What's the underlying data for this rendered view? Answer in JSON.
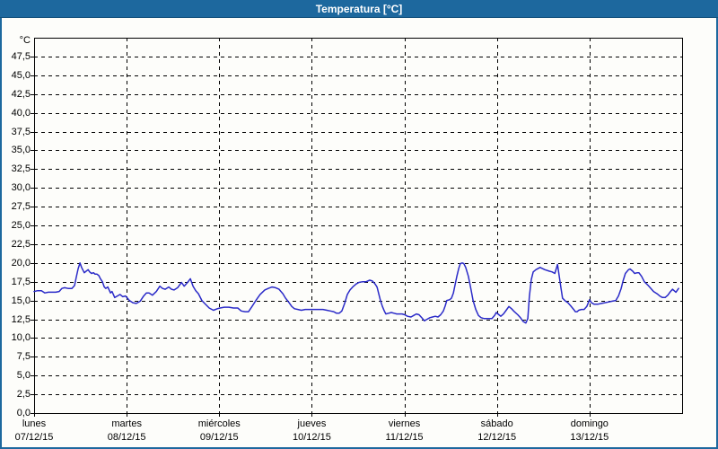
{
  "window": {
    "title": "Temperatura [°C]",
    "titlebar_color": "#1d689e",
    "content_background": "#fdfdfa"
  },
  "chart_data": {
    "type": "line",
    "title": "Temperatura [°C]",
    "unit_label": "°C",
    "grid": "dashed",
    "legend": "none",
    "ylim": [
      0,
      50
    ],
    "xlim_hours": [
      0,
      168
    ],
    "y_ticks": [
      "0,0",
      "2,5",
      "5,0",
      "7,5",
      "10,0",
      "12,5",
      "15,0",
      "17,5",
      "20,0",
      "22,5",
      "25,0",
      "27,5",
      "30,0",
      "32,5",
      "35,0",
      "37,5",
      "40,0",
      "42,5",
      "45,0",
      "47,5"
    ],
    "x_days": [
      {
        "name": "lunes",
        "date": "07/12/15"
      },
      {
        "name": "martes",
        "date": "08/12/15"
      },
      {
        "name": "miércoles",
        "date": "09/12/15"
      },
      {
        "name": "jueves",
        "date": "10/12/15"
      },
      {
        "name": "viernes",
        "date": "11/12/15"
      },
      {
        "name": "sábado",
        "date": "12/12/15"
      },
      {
        "name": "domingo",
        "date": "13/12/15"
      }
    ],
    "series": [
      {
        "name": "Temperatura",
        "color": "#2a2ac8",
        "points_format": "[hours_from_monday_00h, temp_celsius]",
        "points": [
          [
            0,
            16.2
          ],
          [
            0.9,
            16.3
          ],
          [
            1.9,
            16.3
          ],
          [
            2.8,
            16
          ],
          [
            3.7,
            16.1
          ],
          [
            4.7,
            16.1
          ],
          [
            5.6,
            16.1
          ],
          [
            6.5,
            16.2
          ],
          [
            7.2,
            16.6
          ],
          [
            7.9,
            16.7
          ],
          [
            8.8,
            16.6
          ],
          [
            9.8,
            16.6
          ],
          [
            10.5,
            17
          ],
          [
            10.9,
            18
          ],
          [
            11.4,
            19.2
          ],
          [
            11.9,
            20
          ],
          [
            12.3,
            19.4
          ],
          [
            13,
            18.7
          ],
          [
            13.5,
            18.9
          ],
          [
            14,
            19.1
          ],
          [
            14.4,
            18.8
          ],
          [
            14.9,
            18.6
          ],
          [
            15.4,
            18.7
          ],
          [
            15.8,
            18.5
          ],
          [
            16.3,
            18.5
          ],
          [
            16.8,
            18.3
          ],
          [
            17.2,
            17.9
          ],
          [
            17.7,
            17.5
          ],
          [
            18.2,
            16.8
          ],
          [
            18.6,
            16.6
          ],
          [
            19.1,
            16.8
          ],
          [
            19.8,
            16
          ],
          [
            20.2,
            16.2
          ],
          [
            20.9,
            15.4
          ],
          [
            21.6,
            15.6
          ],
          [
            22.3,
            15.8
          ],
          [
            23,
            15.5
          ],
          [
            23.7,
            15.6
          ],
          [
            24.7,
            15
          ],
          [
            25.6,
            14.7
          ],
          [
            26.5,
            14.6
          ],
          [
            27.5,
            14.9
          ],
          [
            28.4,
            15.6
          ],
          [
            29.1,
            16
          ],
          [
            29.8,
            16
          ],
          [
            30.7,
            15.7
          ],
          [
            31.7,
            16.2
          ],
          [
            32.6,
            16.9
          ],
          [
            33.3,
            16.6
          ],
          [
            34,
            16.5
          ],
          [
            34.9,
            16.8
          ],
          [
            35.6,
            16.5
          ],
          [
            36.3,
            16.4
          ],
          [
            37.2,
            16.7
          ],
          [
            38.2,
            17.4
          ],
          [
            38.9,
            16.9
          ],
          [
            39.6,
            17.3
          ],
          [
            40.5,
            17.9
          ],
          [
            41.2,
            16.9
          ],
          [
            41.9,
            16.3
          ],
          [
            42.6,
            15.9
          ],
          [
            43.5,
            15
          ],
          [
            44.2,
            14.6
          ],
          [
            45.4,
            14
          ],
          [
            46.5,
            13.7
          ],
          [
            47.5,
            13.9
          ],
          [
            48.2,
            14
          ],
          [
            49.3,
            14.1
          ],
          [
            50.5,
            14.1
          ],
          [
            51.7,
            14
          ],
          [
            52.8,
            14
          ],
          [
            53.7,
            13.6
          ],
          [
            54.7,
            13.5
          ],
          [
            55.6,
            13.5
          ],
          [
            56.5,
            14.2
          ],
          [
            57.5,
            15
          ],
          [
            58.6,
            15.8
          ],
          [
            59.8,
            16.4
          ],
          [
            60.7,
            16.6
          ],
          [
            61.7,
            16.8
          ],
          [
            62.6,
            16.7
          ],
          [
            63.5,
            16.5
          ],
          [
            64.5,
            15.9
          ],
          [
            65.2,
            15.3
          ],
          [
            66.1,
            14.7
          ],
          [
            66.8,
            14.2
          ],
          [
            67.5,
            13.9
          ],
          [
            68.4,
            13.8
          ],
          [
            69.3,
            13.7
          ],
          [
            70.3,
            13.8
          ],
          [
            71.2,
            13.8
          ],
          [
            72.1,
            13.8
          ],
          [
            73.1,
            13.8
          ],
          [
            74,
            13.8
          ],
          [
            74.9,
            13.8
          ],
          [
            75.9,
            13.7
          ],
          [
            76.8,
            13.6
          ],
          [
            77.7,
            13.5
          ],
          [
            78.4,
            13.3
          ],
          [
            79.1,
            13.3
          ],
          [
            79.8,
            13.6
          ],
          [
            80.5,
            14.6
          ],
          [
            81.2,
            15.8
          ],
          [
            81.9,
            16.4
          ],
          [
            82.6,
            16.8
          ],
          [
            83.5,
            17.2
          ],
          [
            84.2,
            17.4
          ],
          [
            85.2,
            17.5
          ],
          [
            86.1,
            17.5
          ],
          [
            87,
            17.7
          ],
          [
            87.7,
            17.6
          ],
          [
            88.4,
            17.2
          ],
          [
            88.9,
            16.8
          ],
          [
            89.4,
            15.8
          ],
          [
            89.8,
            15
          ],
          [
            90.3,
            14.2
          ],
          [
            90.8,
            13.6
          ],
          [
            91.2,
            13.2
          ],
          [
            91.9,
            13.3
          ],
          [
            92.6,
            13.4
          ],
          [
            93.3,
            13.3
          ],
          [
            94,
            13.2
          ],
          [
            94.7,
            13.2
          ],
          [
            95.4,
            13.2
          ],
          [
            96.1,
            13.1
          ],
          [
            96.8,
            12.9
          ],
          [
            97.7,
            12.8
          ],
          [
            98.4,
            13
          ],
          [
            99.1,
            13.2
          ],
          [
            99.8,
            13.1
          ],
          [
            100.5,
            12.7
          ],
          [
            101.2,
            12.3
          ],
          [
            101.9,
            12.5
          ],
          [
            102.6,
            12.7
          ],
          [
            103.3,
            12.8
          ],
          [
            104,
            12.9
          ],
          [
            104.7,
            12.8
          ],
          [
            105.4,
            13.1
          ],
          [
            106.1,
            13.6
          ],
          [
            106.6,
            14.3
          ],
          [
            107,
            15
          ],
          [
            107.7,
            15.1
          ],
          [
            108.2,
            15.3
          ],
          [
            108.7,
            16
          ],
          [
            109.1,
            17
          ],
          [
            109.6,
            18.2
          ],
          [
            110.1,
            19.3
          ],
          [
            110.5,
            19.9
          ],
          [
            111,
            20
          ],
          [
            111.4,
            19.9
          ],
          [
            111.9,
            19.4
          ],
          [
            112.6,
            18.2
          ],
          [
            113.3,
            16.4
          ],
          [
            113.8,
            15
          ],
          [
            114.5,
            13.8
          ],
          [
            115.2,
            13
          ],
          [
            115.9,
            12.7
          ],
          [
            116.6,
            12.6
          ],
          [
            117.3,
            12.6
          ],
          [
            118,
            12.6
          ],
          [
            118.7,
            12.6
          ],
          [
            119.4,
            13
          ],
          [
            119.8,
            13.4
          ],
          [
            120.5,
            13.1
          ],
          [
            121,
            12.9
          ],
          [
            121.7,
            13.2
          ],
          [
            122.4,
            13.7
          ],
          [
            123.1,
            14.2
          ],
          [
            123.8,
            13.9
          ],
          [
            124.5,
            13.5
          ],
          [
            125.4,
            13.1
          ],
          [
            126.1,
            12.7
          ],
          [
            126.8,
            12.2
          ],
          [
            127.5,
            12
          ],
          [
            128,
            12.6
          ],
          [
            128.4,
            15.5
          ],
          [
            128.9,
            17.8
          ],
          [
            129.4,
            18.8
          ],
          [
            130.1,
            19.1
          ],
          [
            131.2,
            19.4
          ],
          [
            132.4,
            19.1
          ],
          [
            133.6,
            18.9
          ],
          [
            134.3,
            18.8
          ],
          [
            135,
            18.6
          ],
          [
            135.7,
            19.8
          ],
          [
            136.1,
            18.4
          ],
          [
            136.6,
            16.6
          ],
          [
            137,
            15.3
          ],
          [
            137.8,
            14.9
          ],
          [
            138.4,
            14.7
          ],
          [
            139.1,
            14.3
          ],
          [
            139.9,
            13.8
          ],
          [
            140.3,
            13.5
          ],
          [
            140.8,
            13.5
          ],
          [
            141.2,
            13.7
          ],
          [
            141.9,
            13.8
          ],
          [
            142.6,
            13.8
          ],
          [
            143.3,
            14.2
          ],
          [
            144,
            15.1
          ],
          [
            144.5,
            14.7
          ],
          [
            145.2,
            14.5
          ],
          [
            146.1,
            14.5
          ],
          [
            147.1,
            14.6
          ],
          [
            148,
            14.7
          ],
          [
            148.9,
            14.8
          ],
          [
            149.9,
            14.9
          ],
          [
            150.8,
            15
          ],
          [
            151.5,
            15.6
          ],
          [
            152.2,
            16.6
          ],
          [
            152.7,
            17.6
          ],
          [
            153.3,
            18.6
          ],
          [
            154.1,
            19.1
          ],
          [
            154.5,
            19.2
          ],
          [
            155.2,
            18.9
          ],
          [
            155.7,
            18.6
          ],
          [
            156.4,
            18.7
          ],
          [
            156.8,
            18.7
          ],
          [
            157.5,
            18.2
          ],
          [
            158.2,
            17.5
          ],
          [
            159.2,
            17
          ],
          [
            159.9,
            16.6
          ],
          [
            160.6,
            16.2
          ],
          [
            161.5,
            15.9
          ],
          [
            162.2,
            15.6
          ],
          [
            162.9,
            15.4
          ],
          [
            163.6,
            15.4
          ],
          [
            164.3,
            15.7
          ],
          [
            165,
            16.2
          ],
          [
            165.5,
            16.5
          ],
          [
            166.4,
            16.1
          ],
          [
            167.1,
            16.6
          ]
        ]
      }
    ]
  }
}
